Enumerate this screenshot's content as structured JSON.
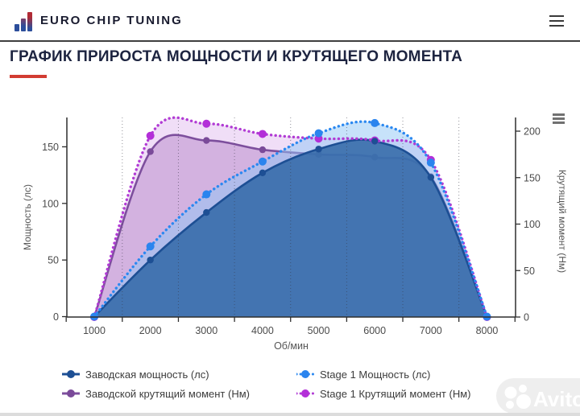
{
  "header": {
    "brand": "EURO CHIP TUNING",
    "menu_icon": "hamburger-icon"
  },
  "title": {
    "text": "ГРАФИК ПРИРОСТА МОЩНОСТИ И КРУТЯЩЕГО МОМЕНТА",
    "accent_color": "#d23c32"
  },
  "chart_data": {
    "type": "area",
    "x": [
      1000,
      2000,
      3000,
      4000,
      5000,
      6000,
      7000,
      8000
    ],
    "xlabel": "Об/мин",
    "ylabel_left": "Мощность (лс)",
    "ylabel_right": "Крутящий момент (Нм)",
    "yticks_left": [
      0,
      50,
      100,
      150
    ],
    "yticks_right": [
      0,
      50,
      100,
      150,
      200
    ],
    "ylim_left": [
      0,
      176
    ],
    "ylim_right": [
      0,
      215
    ],
    "grid_vertical_rpm": [
      1500,
      2500,
      3500,
      4500,
      5500,
      6500,
      7500
    ],
    "grid_on": true,
    "legend_position": "bottom",
    "series": [
      {
        "name": "Заводская мощность (лс)",
        "axis": "left",
        "line": "solid",
        "color": "#1d4f94",
        "fill": "#336aa9",
        "fill_opacity": 0.88,
        "marker": "#1d4f94",
        "marker_r": 4.2,
        "values": [
          0,
          50,
          92,
          127,
          148,
          155,
          123,
          0
        ]
      },
      {
        "name": "Stage 1 Мощность (лс)",
        "axis": "left",
        "line": "dotted",
        "color": "#2b88f0",
        "fill": "#90c6f5",
        "fill_opacity": 0.5,
        "marker": "#2b84ee",
        "marker_r": 5,
        "values": [
          0,
          62,
          108,
          137,
          162,
          171,
          136,
          0
        ]
      },
      {
        "name": "Заводской крутящий момент (Нм)",
        "axis": "right",
        "line": "solid",
        "color": "#7d4f9d",
        "fill": "#c094d1",
        "fill_opacity": 0.6,
        "marker": "#7a4a99",
        "marker_r": 4.2,
        "values": [
          0,
          178,
          190,
          180,
          175,
          172,
          151,
          0
        ]
      },
      {
        "name": "Stage 1 Крутящий момент (Нм)",
        "axis": "right",
        "line": "dotted",
        "color": "#b13bd4",
        "fill": "#e4c2f0",
        "fill_opacity": 0.55,
        "marker": "#b32fd8",
        "marker_r": 5,
        "values": [
          0,
          195,
          208,
          197,
          192,
          190,
          169,
          0
        ]
      }
    ]
  },
  "watermark": {
    "text": "Avito"
  }
}
